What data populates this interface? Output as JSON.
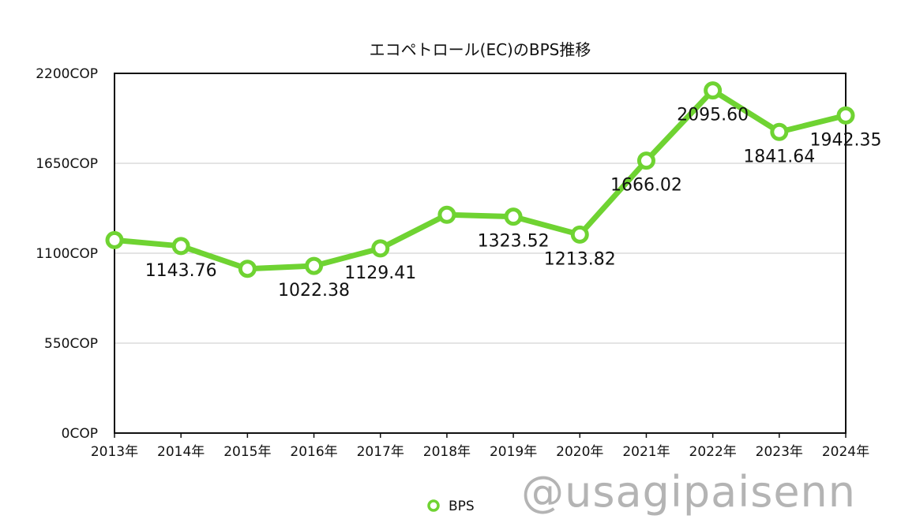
{
  "chart_data": {
    "type": "line",
    "title": "エコペトロール(EC)のBPS推移",
    "categories": [
      "2013年",
      "2014年",
      "2015年",
      "2016年",
      "2017年",
      "2018年",
      "2019年",
      "2020年",
      "2021年",
      "2022年",
      "2023年",
      "2024年"
    ],
    "series": [
      {
        "name": "BPS",
        "values": [
          1180,
          1143.76,
          1005,
          1022.38,
          1129.41,
          1335,
          1323.52,
          1213.82,
          1666.02,
          2095.6,
          1841.64,
          1942.35
        ],
        "labels": [
          "",
          "1143.76",
          "",
          "1022.38",
          "1129.41",
          "",
          "1323.52",
          "1213.82",
          "1666.02",
          "2095.60",
          "1841.64",
          "1942.35"
        ],
        "color": "#6fd332"
      }
    ],
    "yticks": [
      "0COP",
      "550COP",
      "1100COP",
      "1650COP",
      "2200COP"
    ],
    "ylim": [
      0,
      2200
    ],
    "grid": true,
    "legend": "bottom-center"
  },
  "watermark": "@usagipaisenn"
}
